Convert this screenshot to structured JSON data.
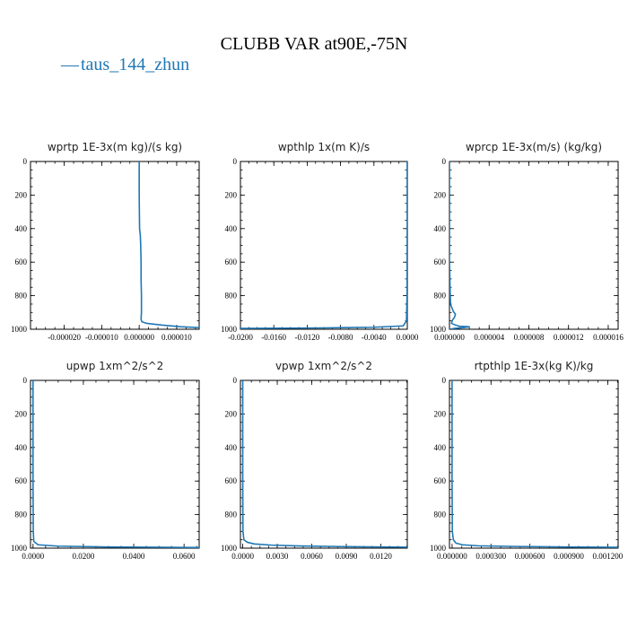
{
  "figure": {
    "title": "CLUBB VAR at90E,-75N",
    "legend": {
      "dash": "—",
      "label": "taus_144_zhun",
      "color": "#1f77b4"
    }
  },
  "chart_data": [
    {
      "type": "line",
      "title": "wprtp  1E-3x(m kg)/(s kg)",
      "xlim": [
        -2.9e-05,
        1.6e-05
      ],
      "ylim": [
        1000,
        0
      ],
      "yticks": [
        0,
        200,
        400,
        600,
        800,
        1000
      ],
      "xticks": [
        -2e-05,
        -1e-05,
        0.0,
        1e-05
      ],
      "xtick_labels": [
        "-0.000020",
        "-0.000010",
        "0.000000",
        "0.000010"
      ],
      "series": [
        {
          "color": "#1f77b4",
          "x": [
            0.0,
            0.0,
            1e-07,
            3e-07,
            4e-07,
            5e-07,
            5e-07,
            6e-07,
            6e-07,
            5e-07,
            7e-07,
            2e-06,
            6e-06,
            1.1e-05,
            1.6e-05
          ],
          "y": [
            0,
            200,
            400,
            440,
            500,
            600,
            700,
            800,
            900,
            940,
            955,
            965,
            975,
            985,
            990
          ]
        }
      ]
    },
    {
      "type": "line",
      "title": "wpthlp  1x(m K)/s",
      "xlim": [
        -0.02,
        0.0
      ],
      "ylim": [
        1000,
        0
      ],
      "yticks": [
        0,
        200,
        400,
        600,
        800,
        1000
      ],
      "xticks": [
        -0.02,
        -0.016,
        -0.012,
        -0.008,
        -0.004,
        0.0
      ],
      "xtick_labels": [
        "-0.0200",
        "-0.0160",
        "-0.0120",
        "-0.0080",
        "-0.0040",
        "0.0000"
      ],
      "series": [
        {
          "color": "#1f77b4",
          "x": [
            -1e-05,
            -1e-05,
            -1e-05,
            -2e-05,
            -3e-05,
            -0.0001,
            -0.0005,
            -0.004,
            -0.01,
            -0.02
          ],
          "y": [
            0,
            200,
            400,
            600,
            800,
            950,
            980,
            988,
            992,
            995
          ]
        }
      ]
    },
    {
      "type": "line",
      "title": "wprcp  1E-3x(m/s) (kg/kg)",
      "xlim": [
        0.0,
        1.7e-05
      ],
      "ylim": [
        1000,
        0
      ],
      "yticks": [
        0,
        200,
        400,
        600,
        800,
        1000
      ],
      "xticks": [
        0.0,
        4e-06,
        8e-06,
        1.2e-05,
        1.6e-05
      ],
      "xtick_labels": [
        "0.000000",
        "0.000004",
        "0.000008",
        "0.000012",
        "0.000016"
      ],
      "series": [
        {
          "color": "#1f77b4",
          "x": [
            0.0,
            0.0,
            0.0,
            1e-07,
            4e-07,
            6e-07,
            5e-07,
            3e-07,
            2e-07,
            6e-07,
            1e-06,
            2e-06,
            1.5e-06,
            5e-07,
            0.0
          ],
          "y": [
            0,
            200,
            600,
            850,
            895,
            910,
            930,
            945,
            965,
            975,
            982,
            985,
            990,
            995,
            1000
          ]
        }
      ]
    },
    {
      "type": "line",
      "title": "upwp  1xm^2/s^2",
      "xlim": [
        -0.001,
        0.066
      ],
      "ylim": [
        1000,
        0
      ],
      "yticks": [
        0,
        200,
        400,
        600,
        800,
        1000
      ],
      "xticks": [
        0.0,
        0.02,
        0.04,
        0.06
      ],
      "xtick_labels": [
        "0.0000",
        "0.0200",
        "0.0400",
        "0.0600"
      ],
      "series": [
        {
          "color": "#1f77b4",
          "x": [
            0.0,
            0.0,
            0.0,
            0.0001,
            0.0003,
            0.002,
            0.01,
            0.03,
            0.066
          ],
          "y": [
            0,
            200,
            600,
            900,
            960,
            980,
            988,
            993,
            996
          ]
        }
      ]
    },
    {
      "type": "line",
      "title": "vpwp  1xm^2/s^2",
      "xlim": [
        -0.0002,
        0.0143
      ],
      "ylim": [
        1000,
        0
      ],
      "yticks": [
        0,
        200,
        400,
        600,
        800,
        1000
      ],
      "xticks": [
        0.0,
        0.003,
        0.006,
        0.009,
        0.012
      ],
      "xtick_labels": [
        "0.0000",
        "0.0030",
        "0.0060",
        "0.0090",
        "0.0120"
      ],
      "series": [
        {
          "color": "#1f77b4",
          "x": [
            0.0,
            0.0,
            0.0,
            2e-05,
            0.0001,
            0.0004,
            0.001,
            0.0025,
            0.005,
            0.009,
            0.0143
          ],
          "y": [
            0,
            200,
            600,
            900,
            950,
            965,
            975,
            982,
            987,
            991,
            994
          ]
        }
      ]
    },
    {
      "type": "line",
      "title": "rtpthlp  1E-3x(kg K)/kg",
      "xlim": [
        -2e-05,
        0.00128
      ],
      "ylim": [
        1000,
        0
      ],
      "yticks": [
        0,
        200,
        400,
        600,
        800,
        1000
      ],
      "xticks": [
        0.0,
        0.0003,
        0.0006,
        0.0009,
        0.0012
      ],
      "xtick_labels": [
        "0.000000",
        "0.000300",
        "0.000600",
        "0.000900",
        "0.001200"
      ],
      "series": [
        {
          "color": "#1f77b4",
          "x": [
            0.0,
            0.0,
            0.0,
            2e-06,
            1e-05,
            3e-05,
            8e-05,
            0.0002,
            0.0005,
            0.0009,
            0.00128
          ],
          "y": [
            0,
            200,
            600,
            900,
            950,
            970,
            980,
            986,
            990,
            993,
            995
          ]
        }
      ]
    }
  ]
}
